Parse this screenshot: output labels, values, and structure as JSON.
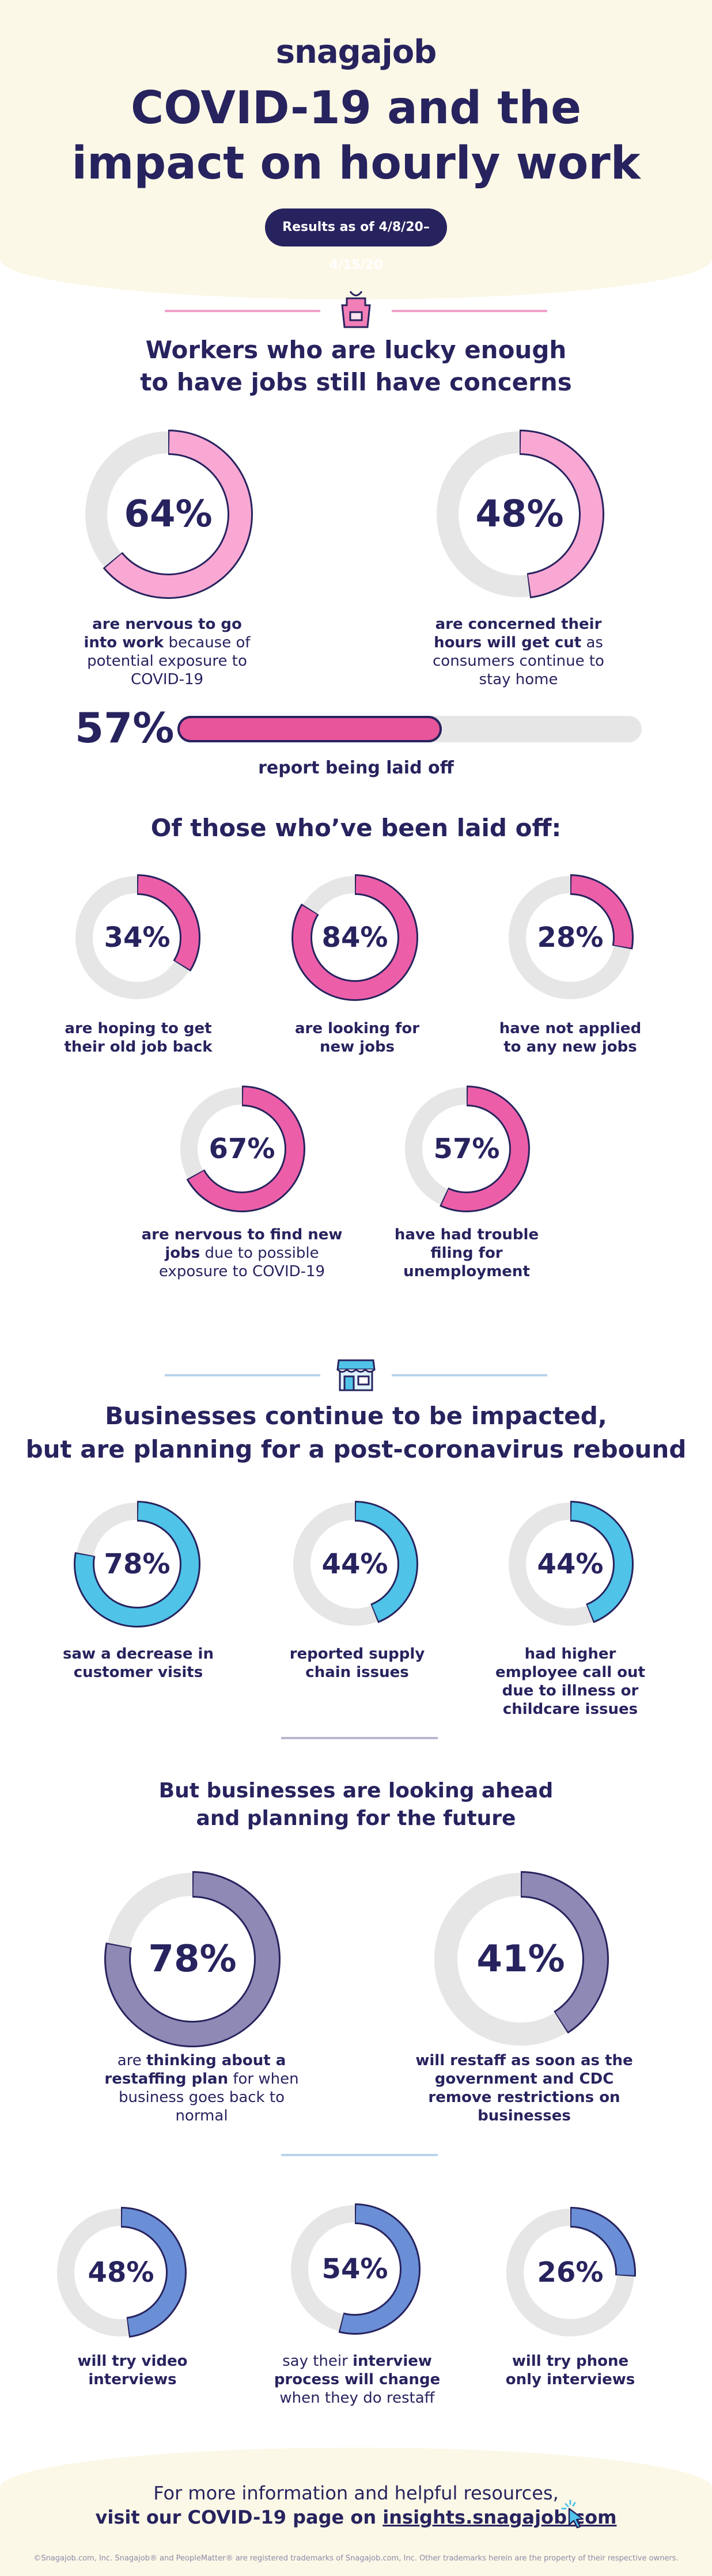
{
  "header": {
    "logo": "snagajob",
    "title_line1": "COVID-19 and the",
    "title_line2": "impact on hourly work",
    "results_label": "Results as of 4/8/20–4/15/20"
  },
  "section1": {
    "heading_line1": "Workers who are lucky enough",
    "heading_line2": "to have jobs still have concerns",
    "stats": [
      {
        "value": 64,
        "label": "64%",
        "caption_bold": "are nervous to go into work",
        "caption_rest": " because of potential exposure to COVID-19"
      },
      {
        "value": 48,
        "label": "48%",
        "caption_bold": "are concerned their hours will get cut",
        "caption_rest": " as consumers continue to stay home"
      }
    ],
    "bar": {
      "value": 57,
      "label": "57%",
      "caption": "report being laid off"
    }
  },
  "section2": {
    "heading": "Of those who’ve been laid off:",
    "stats": [
      {
        "value": 34,
        "label": "34%",
        "caption_bold": "are hoping to get their old job back",
        "caption_rest": ""
      },
      {
        "value": 84,
        "label": "84%",
        "caption_bold": "are looking for new jobs",
        "caption_rest": ""
      },
      {
        "value": 28,
        "label": "28%",
        "caption_bold": "have not applied to any new jobs",
        "caption_rest": ""
      },
      {
        "value": 67,
        "label": "67%",
        "caption_bold": "are nervous to find new jobs",
        "caption_rest": " due to possible exposure to COVID-19"
      },
      {
        "value": 57,
        "label": "57%",
        "caption_bold": "have had trouble filing for unemployment",
        "caption_rest": ""
      }
    ]
  },
  "section3": {
    "heading_line1": "Businesses continue to be impacted,",
    "heading_line2": "but are planning for a post-coronavirus rebound",
    "stats": [
      {
        "value": 78,
        "label": "78%",
        "caption_bold": "saw a decrease in customer visits",
        "caption_rest": ""
      },
      {
        "value": 44,
        "label": "44%",
        "caption_bold": "reported supply chain issues",
        "caption_rest": ""
      },
      {
        "value": 44,
        "label": "44%",
        "caption_bold": "had higher employee call out due to illness or childcare issues",
        "caption_rest": ""
      }
    ]
  },
  "section4": {
    "heading_line1": "But businesses are looking ahead",
    "heading_line2": "and planning for the future",
    "stats": [
      {
        "value": 78,
        "label": "78%",
        "caption_pre": "are ",
        "caption_bold": "thinking about a restaffing plan",
        "caption_rest": " for when business goes back to normal"
      },
      {
        "value": 41,
        "label": "41%",
        "caption_pre": "",
        "caption_bold": "will restaff as soon as the government and CDC remove restrictions on businesses",
        "caption_rest": ""
      }
    ]
  },
  "section5": {
    "stats": [
      {
        "value": 48,
        "label": "48%",
        "caption_pre": "",
        "caption_bold": "will try video interviews",
        "caption_rest": ""
      },
      {
        "value": 54,
        "label": "54%",
        "caption_pre": "say their ",
        "caption_bold": "interview process will change",
        "caption_rest": " when they do restaff"
      },
      {
        "value": 26,
        "label": "26%",
        "caption_pre": "",
        "caption_bold": "will try phone only interviews",
        "caption_rest": ""
      }
    ]
  },
  "footer": {
    "line1": "For more information and helpful resources,",
    "line2_pre": "visit our COVID-19 page on ",
    "link": "insights.snagajob.com",
    "legal": "©Snagajob.com, Inc. Snagajob® and PeopleMatter® are registered trademarks of Snagajob.com, Inc. Other trademarks herein are the property of their respective owners."
  },
  "colors": {
    "navy": "#27235e",
    "pink_light": "#f9a8d4",
    "pink": "#e8559b",
    "pink_ring": "#ec5fa8",
    "blue": "#4fc3e8",
    "purple": "#8f8ab5",
    "blue_mid": "#6a8fd6",
    "track": "#e6e6e6",
    "cream": "#fbf8e7"
  },
  "icons": {
    "section1": "apron-icon",
    "section3": "storefront-icon",
    "footer": "cursor-click-icon"
  }
}
